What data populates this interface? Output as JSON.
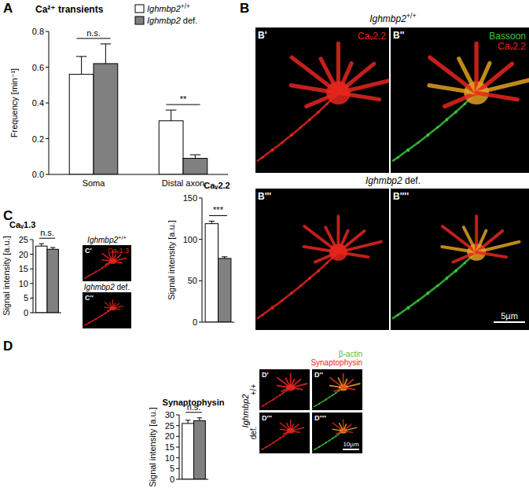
{
  "chart_data": [
    {
      "type": "bar",
      "title": "Ca²⁺ transients",
      "ylabel": "Frequency [min⁻¹]",
      "categories": [
        "Soma",
        "Distal axon"
      ],
      "series": [
        {
          "name": "Ighmbp2+/+",
          "color": "#ffffff",
          "values": [
            0.56,
            0.3
          ],
          "errors": [
            0.1,
            0.06
          ]
        },
        {
          "name": "Ighmbp2 def.",
          "color": "#808080",
          "values": [
            0.62,
            0.09
          ],
          "errors": [
            0.11,
            0.02
          ]
        }
      ],
      "ylim": [
        0,
        0.8
      ],
      "yticks": [
        {
          "value": 0,
          "label": "0.0"
        },
        0.2,
        0.4,
        0.6,
        0.8
      ],
      "legend": "top-right",
      "annotations": [
        "n.s.",
        "**"
      ]
    },
    {
      "type": "bar",
      "title": "Caᵥ2.2",
      "ylabel": "Signal intensity [a.u.]",
      "categories": [
        null
      ],
      "series": [
        {
          "color": "#ffffff",
          "values": [
            119
          ],
          "errors": [
            3
          ]
        },
        {
          "color": "#808080",
          "values": [
            77
          ],
          "errors": [
            2
          ]
        }
      ],
      "ylim": [
        0,
        150
      ],
      "yticks": [
        0,
        50,
        100,
        150
      ],
      "annotations": [
        "***"
      ]
    },
    {
      "type": "bar",
      "title": "Caᵥ1.3",
      "ylabel": "Signal intensity [a.u.]",
      "categories": [
        null
      ],
      "series": [
        {
          "color": "#ffffff",
          "values": [
            22.8
          ],
          "errors": [
            0.8
          ]
        },
        {
          "color": "#808080",
          "values": [
            21.7
          ],
          "errors": [
            0.6
          ]
        }
      ],
      "ylim": [
        0,
        25
      ],
      "yticks": [
        0,
        5,
        10,
        15,
        20,
        25
      ],
      "annotations": [
        "n.s."
      ]
    },
    {
      "type": "bar",
      "title": "Synaptophysin",
      "ylabel": "Signal intensity [a.u.]",
      "categories": [
        null
      ],
      "series": [
        {
          "color": "#ffffff",
          "values": [
            26
          ],
          "errors": [
            1.5
          ]
        },
        {
          "color": "#808080",
          "values": [
            27.3
          ],
          "errors": [
            1.3
          ]
        }
      ],
      "ylim": [
        0,
        30
      ],
      "yticks": [
        0,
        5,
        10,
        15,
        20,
        25,
        30
      ],
      "annotations": [
        "n.s."
      ]
    }
  ],
  "panel_labels": [
    "A",
    "B",
    "C",
    "D"
  ],
  "genotype_labels": [
    "Ighmbp2+/+",
    "Ighmbp2 def.",
    "Ighmbp2+/+",
    "Ighmbp2 def."
  ],
  "genotype_D": {
    "gene": "Ighmbp2",
    "rows": [
      "+/+",
      "def."
    ]
  },
  "image_panels": [
    {
      "label": "B'",
      "stains": [
        {
          "text": "Caᵥ2.2",
          "color": "#e8251e"
        }
      ]
    },
    {
      "label": "B''",
      "stains": [
        {
          "text": "Bassoon",
          "color": "#3cc83c"
        },
        {
          "text": "Caᵥ2.2",
          "color": "#e8251e"
        }
      ]
    },
    {
      "label": "B'''",
      "stains": []
    },
    {
      "label": "B''''",
      "stains": []
    },
    {
      "label": "C'",
      "stains": [
        {
          "text": "Caᵥ1.3",
          "color": "#e8251e"
        }
      ]
    },
    {
      "label": "C''",
      "stains": []
    },
    {
      "label": "D'",
      "stains": []
    },
    {
      "label": "D''",
      "stains": [
        {
          "text": "β-actin",
          "color": "#3cc83c"
        },
        {
          "text": "Synaptophysin",
          "color": "#e8251e"
        }
      ]
    },
    {
      "label": "D'''",
      "stains": []
    },
    {
      "label": "D''''",
      "stains": []
    }
  ],
  "scale_bars": [
    "5µm",
    "10µm"
  ]
}
